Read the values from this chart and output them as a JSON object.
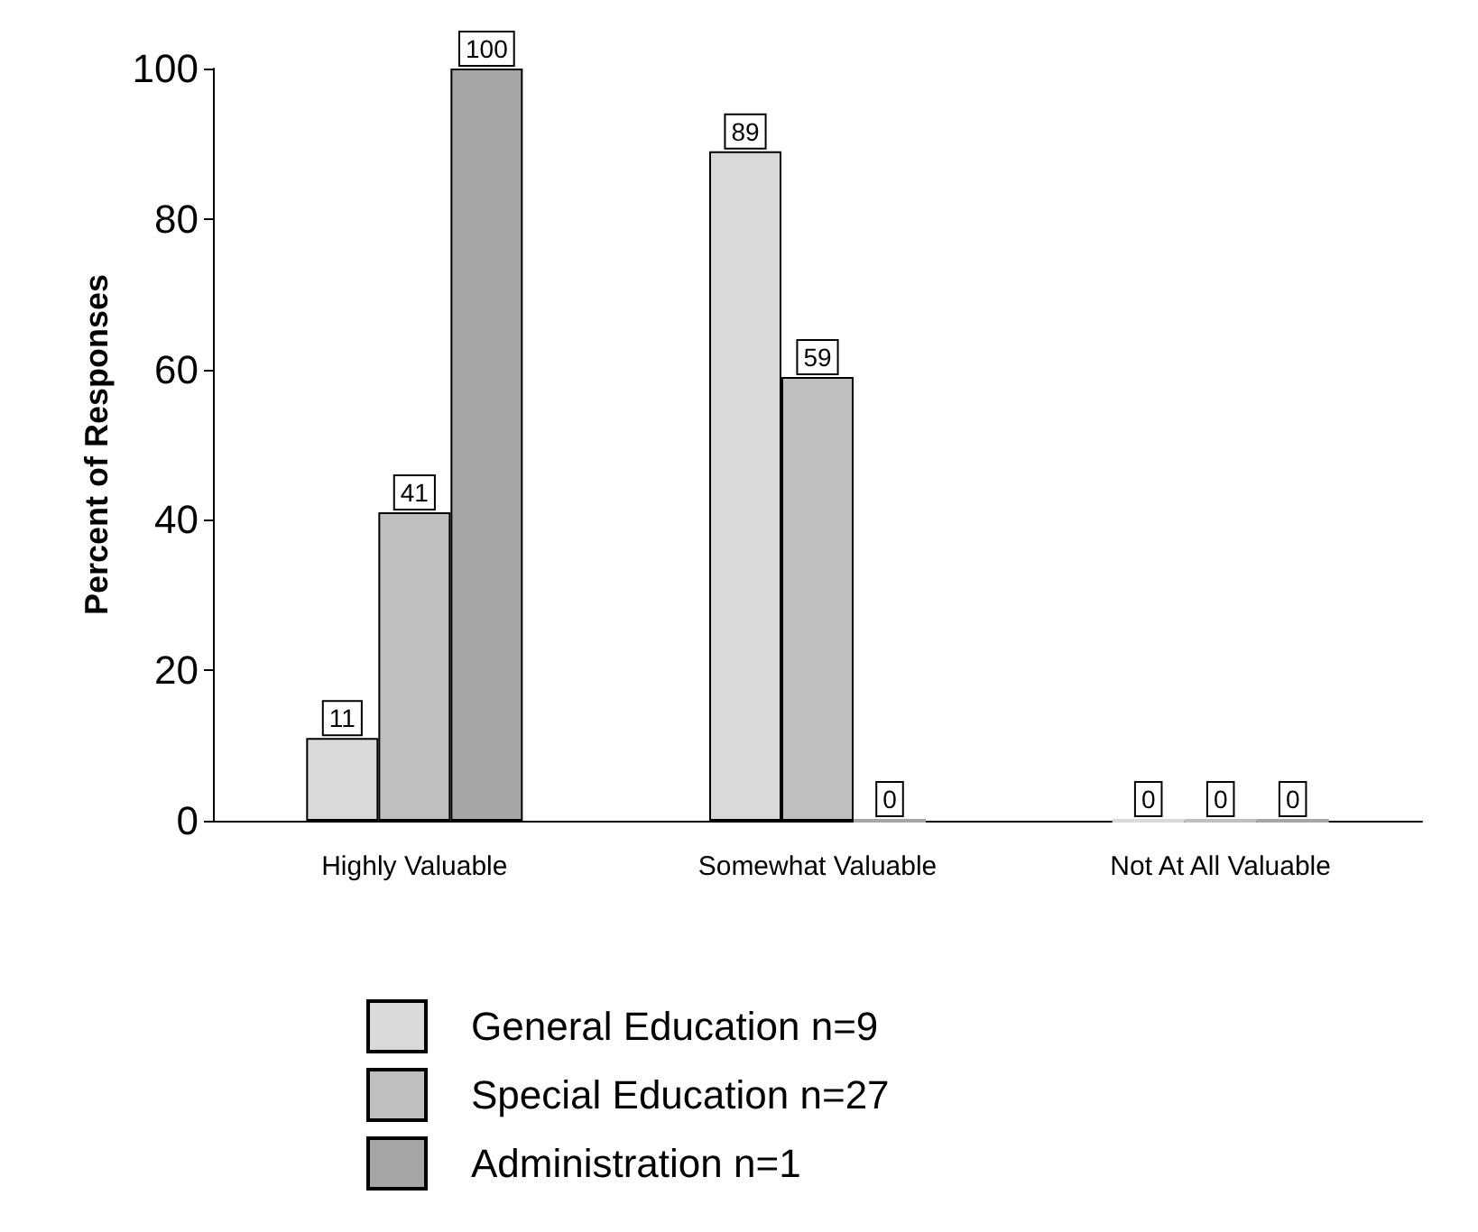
{
  "chart_data": {
    "type": "bar",
    "ylabel": "Percent of Responses",
    "categories": [
      "Highly Valuable",
      "Somewhat Valuable",
      "Not At All Valuable"
    ],
    "series": [
      {
        "name": "General Education n=9",
        "color": "#d9d9d9",
        "values": [
          11,
          89,
          0
        ]
      },
      {
        "name": "Special Education n=27",
        "color": "#bfbfbf",
        "values": [
          41,
          59,
          0
        ]
      },
      {
        "name": "Administration n=1",
        "color": "#a6a6a6",
        "values": [
          100,
          0,
          0
        ]
      }
    ],
    "ylim": [
      0,
      100
    ],
    "yticks": [
      0,
      20,
      40,
      60,
      80,
      100
    ],
    "grid": false,
    "legend": "bottom",
    "data_labels": true
  }
}
